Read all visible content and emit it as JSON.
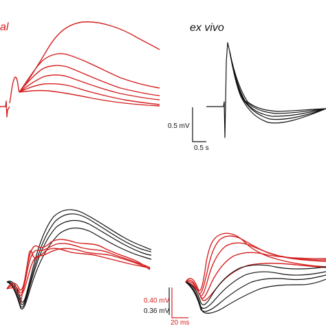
{
  "panels": {
    "top_left": {
      "label": "al",
      "color": "#d42020"
    },
    "top_right": {
      "label": "ex vivo",
      "color": "#111111",
      "scale_voltage": "0.5 mV",
      "scale_time": "0.5 s"
    },
    "bottom_left": {
      "colors": [
        "#111111",
        "#d42020"
      ]
    },
    "bottom_right": {
      "scale_voltage_red": "0.40 mV",
      "scale_voltage_black": "0.36 mV",
      "scale_time": "20 ms",
      "colors": [
        "#111111",
        "#d42020"
      ]
    }
  }
}
